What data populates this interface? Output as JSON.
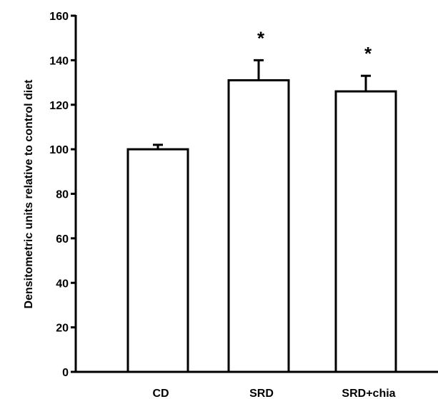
{
  "chart_data": {
    "type": "bar",
    "categories": [
      "CD",
      "SRD",
      "SRD+chia"
    ],
    "values": [
      100,
      131,
      126
    ],
    "errors": [
      2,
      9,
      7
    ],
    "annotations": [
      "",
      "*",
      "*"
    ],
    "ylabel": "Densitometric units relative to control diet",
    "xlabel": "",
    "ylim": [
      0,
      160
    ],
    "yticks": [
      0,
      20,
      40,
      60,
      80,
      100,
      120,
      140,
      160
    ],
    "grid": false,
    "bar_fill": "#ffffff",
    "bar_stroke": "#000000"
  }
}
